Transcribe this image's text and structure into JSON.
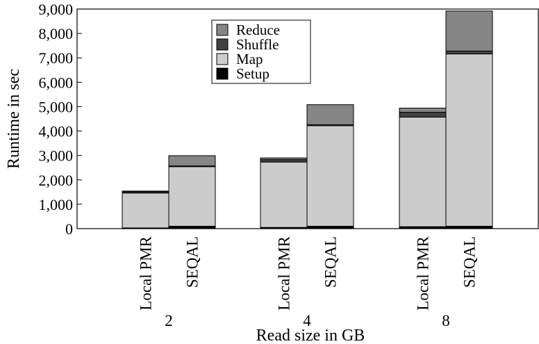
{
  "chart_data": {
    "type": "bar",
    "stacked": true,
    "xlabel": "Read size in GB",
    "ylabel": "Runtime in sec",
    "ylim": [
      0,
      9000
    ],
    "yticks": [
      0,
      1000,
      2000,
      3000,
      4000,
      5000,
      6000,
      7000,
      8000,
      9000
    ],
    "ytick_labels": [
      "0",
      "1,000",
      "2,000",
      "3,000",
      "4,000",
      "5,000",
      "6,000",
      "7,000",
      "8,000",
      "9,000"
    ],
    "grid": false,
    "legend_position": "top-center",
    "groups": [
      {
        "label": "2",
        "bars": [
          {
            "label": "Local  PMR",
            "Setup": 30,
            "Map": 1430,
            "Shuffle": 50,
            "Reduce": 30
          },
          {
            "label": "SEQAL",
            "Setup": 100,
            "Map": 2440,
            "Shuffle": 30,
            "Reduce": 420
          }
        ]
      },
      {
        "label": "4",
        "bars": [
          {
            "label": "Local  PMR",
            "Setup": 50,
            "Map": 2680,
            "Shuffle": 100,
            "Reduce": 70
          },
          {
            "label": "SEQAL",
            "Setup": 100,
            "Map": 4120,
            "Shuffle": 40,
            "Reduce": 820
          }
        ]
      },
      {
        "label": "8",
        "bars": [
          {
            "label": "Local  PMR",
            "Setup": 80,
            "Map": 4490,
            "Shuffle": 200,
            "Reduce": 170
          },
          {
            "label": "SEQAL",
            "Setup": 100,
            "Map": 7060,
            "Shuffle": 120,
            "Reduce": 1640
          }
        ]
      }
    ],
    "series": [
      {
        "name": "Setup",
        "color": "#000000"
      },
      {
        "name": "Map",
        "color": "#cccccc"
      },
      {
        "name": "Shuffle",
        "color": "#404040"
      },
      {
        "name": "Reduce",
        "color": "#868686"
      }
    ],
    "legend_order": [
      "Reduce",
      "Shuffle",
      "Map",
      "Setup"
    ]
  }
}
